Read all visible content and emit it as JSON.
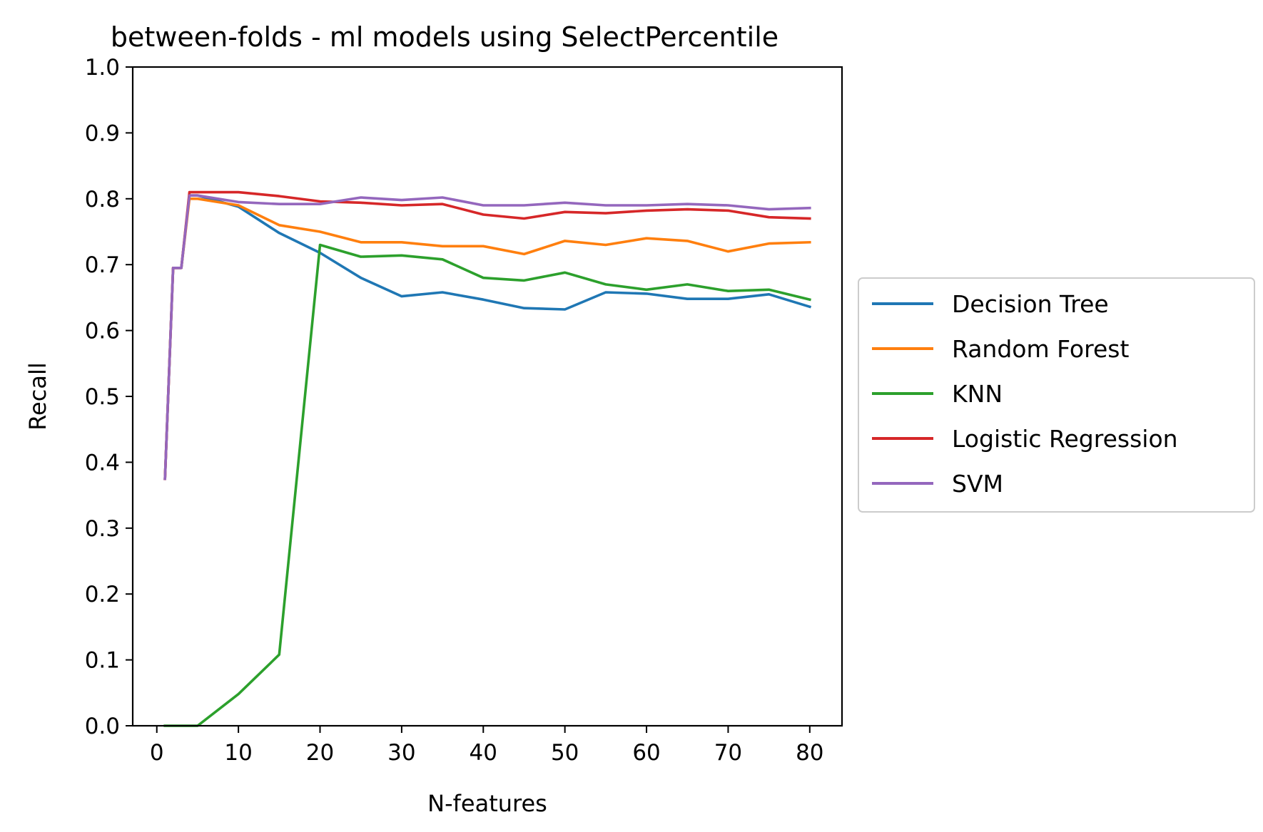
{
  "chart_data": {
    "type": "line",
    "title": "between-folds - ml models using SelectPercentile",
    "xlabel": "N-features",
    "ylabel": "Recall",
    "xlim": [
      -2.95,
      83.95
    ],
    "ylim": [
      0.0,
      1.0
    ],
    "xticks": [
      0,
      10,
      20,
      30,
      40,
      50,
      60,
      70,
      80
    ],
    "yticks": [
      0.0,
      0.1,
      0.2,
      0.3,
      0.4,
      0.5,
      0.6,
      0.7,
      0.8,
      0.9,
      1.0
    ],
    "grid": false,
    "legend_position": "center-right-outside",
    "x": [
      1,
      2,
      3,
      4,
      5,
      10,
      15,
      20,
      25,
      30,
      35,
      40,
      45,
      50,
      55,
      60,
      65,
      70,
      75,
      80
    ],
    "series": [
      {
        "name": "Decision Tree",
        "color": "#1f77b4",
        "values": [
          0.375,
          0.695,
          0.695,
          0.805,
          0.805,
          0.788,
          0.748,
          0.718,
          0.68,
          0.652,
          0.658,
          0.647,
          0.634,
          0.632,
          0.658,
          0.656,
          0.648,
          0.648,
          0.655,
          0.636
        ]
      },
      {
        "name": "Random Forest",
        "color": "#ff7f0e",
        "values": [
          0.375,
          0.695,
          0.695,
          0.8,
          0.8,
          0.79,
          0.76,
          0.75,
          0.734,
          0.734,
          0.728,
          0.728,
          0.716,
          0.736,
          0.73,
          0.74,
          0.736,
          0.72,
          0.732,
          0.734
        ]
      },
      {
        "name": "KNN",
        "color": "#2ca02c",
        "values": [
          0.0,
          0.0,
          0.0,
          0.0,
          0.0,
          0.048,
          0.108,
          0.73,
          0.712,
          0.714,
          0.708,
          0.68,
          0.676,
          0.688,
          0.67,
          0.662,
          0.67,
          0.66,
          0.662,
          0.647
        ]
      },
      {
        "name": "Logistic Regression",
        "color": "#d62728",
        "values": [
          0.375,
          0.695,
          0.695,
          0.81,
          0.81,
          0.81,
          0.804,
          0.796,
          0.794,
          0.79,
          0.792,
          0.776,
          0.77,
          0.78,
          0.778,
          0.782,
          0.784,
          0.782,
          0.772,
          0.77
        ]
      },
      {
        "name": "SVM",
        "color": "#9467bd",
        "values": [
          0.375,
          0.695,
          0.695,
          0.805,
          0.805,
          0.795,
          0.792,
          0.792,
          0.802,
          0.798,
          0.802,
          0.79,
          0.79,
          0.794,
          0.79,
          0.79,
          0.792,
          0.79,
          0.784,
          0.786
        ]
      }
    ]
  }
}
